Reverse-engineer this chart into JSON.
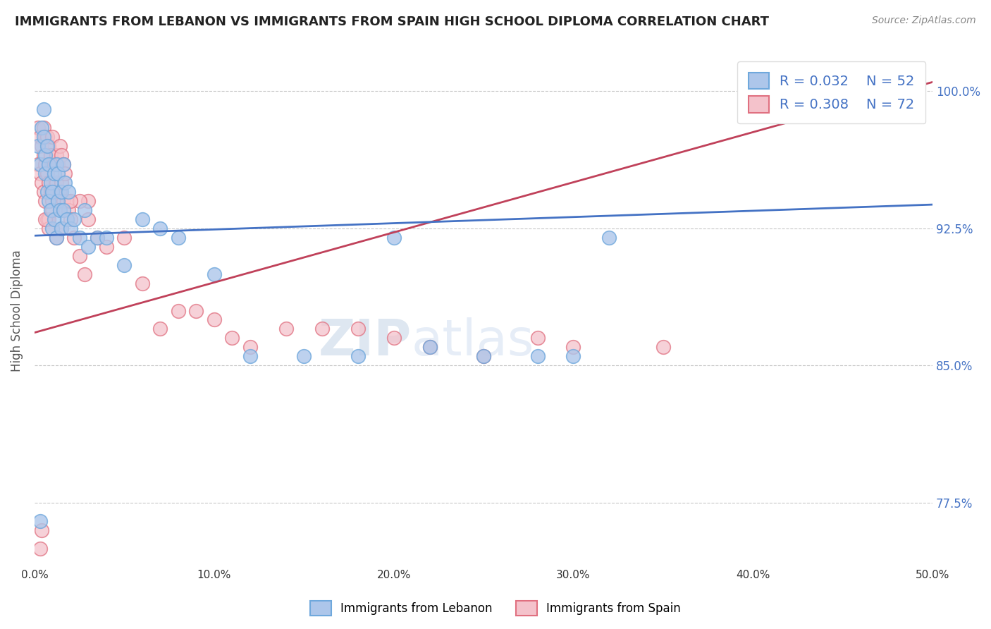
{
  "title": "IMMIGRANTS FROM LEBANON VS IMMIGRANTS FROM SPAIN HIGH SCHOOL DIPLOMA CORRELATION CHART",
  "source": "Source: ZipAtlas.com",
  "ylabel": "High School Diploma",
  "xlim": [
    0.0,
    0.5
  ],
  "ylim": [
    0.74,
    1.02
  ],
  "yticks": [
    0.775,
    0.85,
    0.925,
    1.0
  ],
  "ytick_labels": [
    "77.5%",
    "85.0%",
    "92.5%",
    "100.0%"
  ],
  "xticks": [
    0.0,
    0.1,
    0.2,
    0.3,
    0.4,
    0.5
  ],
  "xtick_labels": [
    "0.0%",
    "10.0%",
    "20.0%",
    "30.0%",
    "40.0%",
    "50.0%"
  ],
  "legend_items": [
    {
      "label": "Immigrants from Lebanon",
      "color": "#6fa8dc",
      "R": 0.032,
      "N": 52
    },
    {
      "label": "Immigrants from Spain",
      "color": "#ea9999",
      "R": 0.308,
      "N": 72
    }
  ],
  "blue_line": {
    "x0": 0.0,
    "y0": 0.921,
    "x1": 0.5,
    "y1": 0.938
  },
  "pink_line": {
    "x0": 0.0,
    "y0": 0.868,
    "x1": 0.5,
    "y1": 1.005
  },
  "blue_scatter_x": [
    0.002,
    0.003,
    0.004,
    0.005,
    0.005,
    0.006,
    0.006,
    0.007,
    0.007,
    0.008,
    0.008,
    0.009,
    0.009,
    0.01,
    0.01,
    0.011,
    0.011,
    0.012,
    0.012,
    0.013,
    0.013,
    0.014,
    0.015,
    0.015,
    0.016,
    0.016,
    0.017,
    0.018,
    0.019,
    0.02,
    0.022,
    0.025,
    0.028,
    0.03,
    0.035,
    0.04,
    0.05,
    0.06,
    0.07,
    0.08,
    0.1,
    0.12,
    0.15,
    0.18,
    0.2,
    0.22,
    0.25,
    0.28,
    0.3,
    0.32,
    0.45,
    0.003
  ],
  "blue_scatter_y": [
    0.97,
    0.96,
    0.98,
    0.99,
    0.975,
    0.965,
    0.955,
    0.97,
    0.945,
    0.96,
    0.94,
    0.95,
    0.935,
    0.945,
    0.925,
    0.955,
    0.93,
    0.96,
    0.92,
    0.94,
    0.955,
    0.935,
    0.945,
    0.925,
    0.935,
    0.96,
    0.95,
    0.93,
    0.945,
    0.925,
    0.93,
    0.92,
    0.935,
    0.915,
    0.92,
    0.92,
    0.905,
    0.93,
    0.925,
    0.92,
    0.9,
    0.855,
    0.855,
    0.855,
    0.92,
    0.86,
    0.855,
    0.855,
    0.855,
    0.92,
    1.0,
    0.765
  ],
  "pink_scatter_x": [
    0.002,
    0.002,
    0.003,
    0.003,
    0.004,
    0.004,
    0.005,
    0.005,
    0.005,
    0.006,
    0.006,
    0.006,
    0.007,
    0.007,
    0.007,
    0.008,
    0.008,
    0.008,
    0.009,
    0.009,
    0.01,
    0.01,
    0.01,
    0.011,
    0.011,
    0.012,
    0.012,
    0.013,
    0.013,
    0.014,
    0.014,
    0.015,
    0.015,
    0.016,
    0.016,
    0.017,
    0.018,
    0.019,
    0.02,
    0.022,
    0.025,
    0.028,
    0.03,
    0.035,
    0.04,
    0.05,
    0.06,
    0.07,
    0.08,
    0.09,
    0.1,
    0.11,
    0.12,
    0.14,
    0.16,
    0.18,
    0.2,
    0.22,
    0.25,
    0.28,
    0.3,
    0.35,
    0.015,
    0.025,
    0.03,
    0.012,
    0.008,
    0.006,
    0.01,
    0.02,
    0.004,
    0.003
  ],
  "pink_scatter_y": [
    0.98,
    0.96,
    0.975,
    0.955,
    0.97,
    0.95,
    0.98,
    0.965,
    0.945,
    0.975,
    0.96,
    0.94,
    0.975,
    0.955,
    0.93,
    0.97,
    0.95,
    0.93,
    0.965,
    0.945,
    0.975,
    0.96,
    0.94,
    0.96,
    0.945,
    0.965,
    0.95,
    0.96,
    0.94,
    0.97,
    0.945,
    0.965,
    0.95,
    0.96,
    0.94,
    0.955,
    0.94,
    0.935,
    0.93,
    0.92,
    0.91,
    0.9,
    0.94,
    0.92,
    0.915,
    0.92,
    0.895,
    0.87,
    0.88,
    0.88,
    0.875,
    0.865,
    0.86,
    0.87,
    0.87,
    0.87,
    0.865,
    0.86,
    0.855,
    0.865,
    0.86,
    0.86,
    0.925,
    0.94,
    0.93,
    0.92,
    0.925,
    0.93,
    0.935,
    0.94,
    0.76,
    0.75
  ]
}
